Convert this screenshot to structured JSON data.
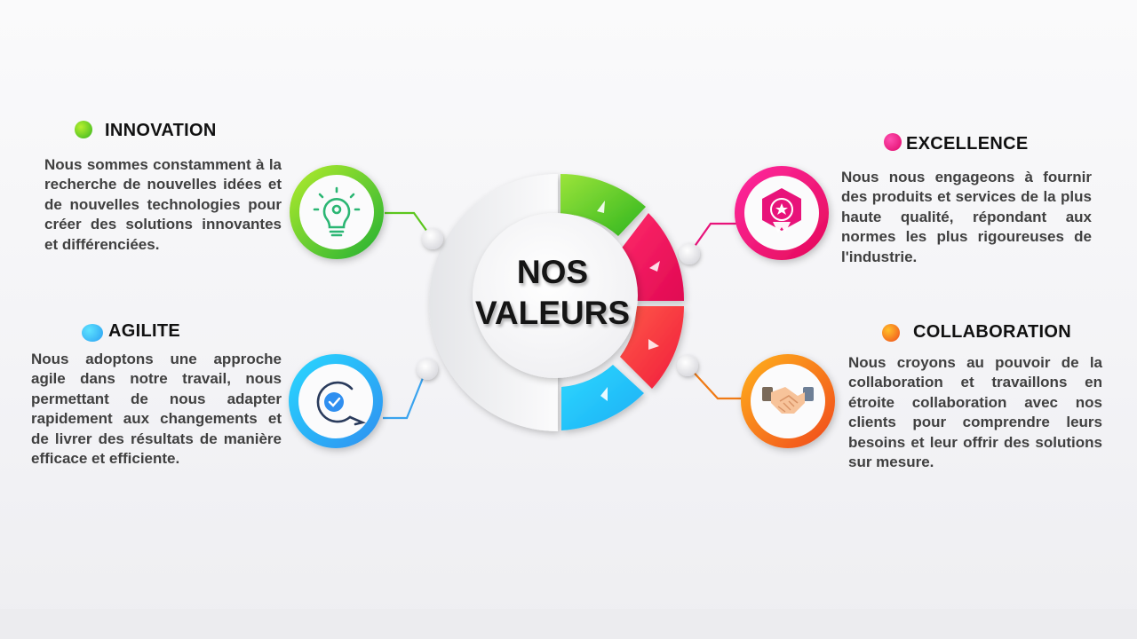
{
  "center": {
    "line1": "NOS",
    "line2": "VALEURS"
  },
  "values": {
    "innovation": {
      "title": "INNOVATION",
      "text": "Nous sommes constamment à la recherche de nouvelles idées et de nouvelles technologies pour créer des solutions innovantes et différenciées.",
      "icon": "lightbulb-gear-icon",
      "color": "#5cc61e"
    },
    "agilite": {
      "title": "AGILITE",
      "text": "Nous adoptons une approche agile dans notre travail, nous permettant de nous adapter rapidement aux changements et de livrer des résultats de manière efficace et efficiente.",
      "icon": "agile-cycle-check-icon",
      "color": "#2aa8f5"
    },
    "excellence": {
      "title": "EXCELLENCE",
      "text": "Nous nous engageons à fournir des produits et services de la plus haute qualité, répondant aux normes les plus rigoureuses de l'industrie.",
      "icon": "award-badge-icon",
      "color": "#e8137a"
    },
    "collaboration": {
      "title": "COLLABORATION",
      "text": "Nous croyons au pouvoir de la collaboration et travaillons en étroite collaboration avec nos clients pour comprendre leurs besoins et leur offrir des solutions sur mesure.",
      "icon": "handshake-icon",
      "color": "#f07a14"
    }
  }
}
